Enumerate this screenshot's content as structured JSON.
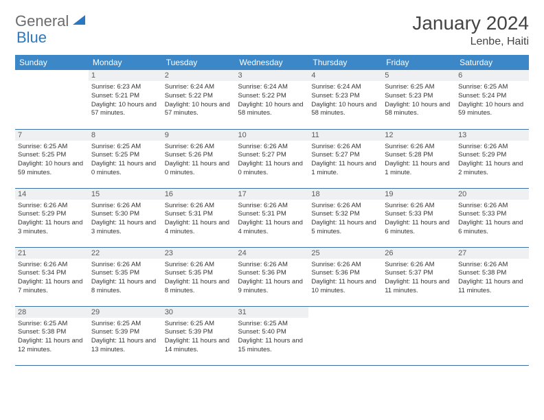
{
  "logo": {
    "text1": "General",
    "text2": "Blue"
  },
  "title": "January 2024",
  "location": "Lenbe, Haiti",
  "colors": {
    "header_bg": "#3b87c8",
    "header_fg": "#ffffff",
    "daynum_bg": "#eef0f1",
    "row_border": "#3b6fa8",
    "logo_gray": "#6b6b6b",
    "logo_blue": "#2b78c2",
    "page_bg": "#ffffff",
    "text": "#333333"
  },
  "weekdays": [
    "Sunday",
    "Monday",
    "Tuesday",
    "Wednesday",
    "Thursday",
    "Friday",
    "Saturday"
  ],
  "weeks": [
    [
      null,
      {
        "n": "1",
        "sr": "Sunrise: 6:23 AM",
        "ss": "Sunset: 5:21 PM",
        "dl": "Daylight: 10 hours and 57 minutes."
      },
      {
        "n": "2",
        "sr": "Sunrise: 6:24 AM",
        "ss": "Sunset: 5:22 PM",
        "dl": "Daylight: 10 hours and 57 minutes."
      },
      {
        "n": "3",
        "sr": "Sunrise: 6:24 AM",
        "ss": "Sunset: 5:22 PM",
        "dl": "Daylight: 10 hours and 58 minutes."
      },
      {
        "n": "4",
        "sr": "Sunrise: 6:24 AM",
        "ss": "Sunset: 5:23 PM",
        "dl": "Daylight: 10 hours and 58 minutes."
      },
      {
        "n": "5",
        "sr": "Sunrise: 6:25 AM",
        "ss": "Sunset: 5:23 PM",
        "dl": "Daylight: 10 hours and 58 minutes."
      },
      {
        "n": "6",
        "sr": "Sunrise: 6:25 AM",
        "ss": "Sunset: 5:24 PM",
        "dl": "Daylight: 10 hours and 59 minutes."
      }
    ],
    [
      {
        "n": "7",
        "sr": "Sunrise: 6:25 AM",
        "ss": "Sunset: 5:25 PM",
        "dl": "Daylight: 10 hours and 59 minutes."
      },
      {
        "n": "8",
        "sr": "Sunrise: 6:25 AM",
        "ss": "Sunset: 5:25 PM",
        "dl": "Daylight: 11 hours and 0 minutes."
      },
      {
        "n": "9",
        "sr": "Sunrise: 6:26 AM",
        "ss": "Sunset: 5:26 PM",
        "dl": "Daylight: 11 hours and 0 minutes."
      },
      {
        "n": "10",
        "sr": "Sunrise: 6:26 AM",
        "ss": "Sunset: 5:27 PM",
        "dl": "Daylight: 11 hours and 0 minutes."
      },
      {
        "n": "11",
        "sr": "Sunrise: 6:26 AM",
        "ss": "Sunset: 5:27 PM",
        "dl": "Daylight: 11 hours and 1 minute."
      },
      {
        "n": "12",
        "sr": "Sunrise: 6:26 AM",
        "ss": "Sunset: 5:28 PM",
        "dl": "Daylight: 11 hours and 1 minute."
      },
      {
        "n": "13",
        "sr": "Sunrise: 6:26 AM",
        "ss": "Sunset: 5:29 PM",
        "dl": "Daylight: 11 hours and 2 minutes."
      }
    ],
    [
      {
        "n": "14",
        "sr": "Sunrise: 6:26 AM",
        "ss": "Sunset: 5:29 PM",
        "dl": "Daylight: 11 hours and 3 minutes."
      },
      {
        "n": "15",
        "sr": "Sunrise: 6:26 AM",
        "ss": "Sunset: 5:30 PM",
        "dl": "Daylight: 11 hours and 3 minutes."
      },
      {
        "n": "16",
        "sr": "Sunrise: 6:26 AM",
        "ss": "Sunset: 5:31 PM",
        "dl": "Daylight: 11 hours and 4 minutes."
      },
      {
        "n": "17",
        "sr": "Sunrise: 6:26 AM",
        "ss": "Sunset: 5:31 PM",
        "dl": "Daylight: 11 hours and 4 minutes."
      },
      {
        "n": "18",
        "sr": "Sunrise: 6:26 AM",
        "ss": "Sunset: 5:32 PM",
        "dl": "Daylight: 11 hours and 5 minutes."
      },
      {
        "n": "19",
        "sr": "Sunrise: 6:26 AM",
        "ss": "Sunset: 5:33 PM",
        "dl": "Daylight: 11 hours and 6 minutes."
      },
      {
        "n": "20",
        "sr": "Sunrise: 6:26 AM",
        "ss": "Sunset: 5:33 PM",
        "dl": "Daylight: 11 hours and 6 minutes."
      }
    ],
    [
      {
        "n": "21",
        "sr": "Sunrise: 6:26 AM",
        "ss": "Sunset: 5:34 PM",
        "dl": "Daylight: 11 hours and 7 minutes."
      },
      {
        "n": "22",
        "sr": "Sunrise: 6:26 AM",
        "ss": "Sunset: 5:35 PM",
        "dl": "Daylight: 11 hours and 8 minutes."
      },
      {
        "n": "23",
        "sr": "Sunrise: 6:26 AM",
        "ss": "Sunset: 5:35 PM",
        "dl": "Daylight: 11 hours and 8 minutes."
      },
      {
        "n": "24",
        "sr": "Sunrise: 6:26 AM",
        "ss": "Sunset: 5:36 PM",
        "dl": "Daylight: 11 hours and 9 minutes."
      },
      {
        "n": "25",
        "sr": "Sunrise: 6:26 AM",
        "ss": "Sunset: 5:36 PM",
        "dl": "Daylight: 11 hours and 10 minutes."
      },
      {
        "n": "26",
        "sr": "Sunrise: 6:26 AM",
        "ss": "Sunset: 5:37 PM",
        "dl": "Daylight: 11 hours and 11 minutes."
      },
      {
        "n": "27",
        "sr": "Sunrise: 6:26 AM",
        "ss": "Sunset: 5:38 PM",
        "dl": "Daylight: 11 hours and 11 minutes."
      }
    ],
    [
      {
        "n": "28",
        "sr": "Sunrise: 6:25 AM",
        "ss": "Sunset: 5:38 PM",
        "dl": "Daylight: 11 hours and 12 minutes."
      },
      {
        "n": "29",
        "sr": "Sunrise: 6:25 AM",
        "ss": "Sunset: 5:39 PM",
        "dl": "Daylight: 11 hours and 13 minutes."
      },
      {
        "n": "30",
        "sr": "Sunrise: 6:25 AM",
        "ss": "Sunset: 5:39 PM",
        "dl": "Daylight: 11 hours and 14 minutes."
      },
      {
        "n": "31",
        "sr": "Sunrise: 6:25 AM",
        "ss": "Sunset: 5:40 PM",
        "dl": "Daylight: 11 hours and 15 minutes."
      },
      null,
      null,
      null
    ]
  ]
}
